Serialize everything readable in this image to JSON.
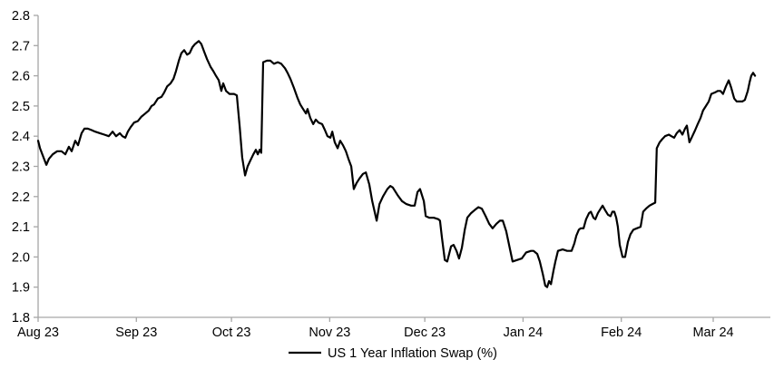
{
  "chart_data": {
    "type": "line",
    "title": "",
    "legend": {
      "label": "US 1 Year Inflation Swap (%)",
      "position": "bottom-center"
    },
    "background": "#ffffff",
    "grid": "off",
    "axis_color": "#a6a6a6",
    "line_color": "#000000",
    "y_axis": {
      "min": 1.8,
      "max": 2.8,
      "step": 0.1,
      "tick_labels": [
        "1.8",
        "1.9",
        "2.0",
        "2.1",
        "2.2",
        "2.3",
        "2.4",
        "2.5",
        "2.6",
        "2.7",
        "2.8"
      ]
    },
    "x_axis": {
      "unit": "days since 2023-08-01",
      "range_days": [
        0,
        230
      ],
      "ticks": [
        {
          "label": "Aug 23",
          "day": 0
        },
        {
          "label": "Sep 23",
          "day": 31
        },
        {
          "label": "Oct 23",
          "day": 61
        },
        {
          "label": "Nov 23",
          "day": 92
        },
        {
          "label": "Dec 23",
          "day": 122
        },
        {
          "label": "Jan 24",
          "day": 153
        },
        {
          "label": "Feb 24",
          "day": 184
        },
        {
          "label": "Mar 24",
          "day": 213
        }
      ]
    },
    "series": [
      {
        "name": "US 1 Year Inflation Swap (%)",
        "color": "#000000",
        "points": [
          [
            0,
            2.385
          ],
          [
            0.6,
            2.36
          ],
          [
            1.7,
            2.33
          ],
          [
            2.6,
            2.305
          ],
          [
            3.4,
            2.325
          ],
          [
            4.6,
            2.34
          ],
          [
            6.0,
            2.35
          ],
          [
            7.4,
            2.35
          ],
          [
            8.6,
            2.34
          ],
          [
            9.7,
            2.365
          ],
          [
            10.6,
            2.35
          ],
          [
            11.7,
            2.385
          ],
          [
            12.6,
            2.37
          ],
          [
            13.7,
            2.41
          ],
          [
            14.6,
            2.425
          ],
          [
            15.7,
            2.425
          ],
          [
            16.9,
            2.42
          ],
          [
            18.0,
            2.415
          ],
          [
            19.5,
            2.41
          ],
          [
            20.9,
            2.405
          ],
          [
            22.3,
            2.4
          ],
          [
            23.5,
            2.415
          ],
          [
            24.6,
            2.4
          ],
          [
            25.8,
            2.41
          ],
          [
            26.6,
            2.4
          ],
          [
            27.5,
            2.395
          ],
          [
            28.3,
            2.415
          ],
          [
            29.2,
            2.43
          ],
          [
            30.3,
            2.445
          ],
          [
            31.5,
            2.45
          ],
          [
            32.6,
            2.465
          ],
          [
            33.8,
            2.475
          ],
          [
            34.9,
            2.485
          ],
          [
            35.8,
            2.5
          ],
          [
            36.6,
            2.505
          ],
          [
            37.8,
            2.525
          ],
          [
            38.9,
            2.53
          ],
          [
            39.8,
            2.545
          ],
          [
            40.7,
            2.565
          ],
          [
            41.8,
            2.575
          ],
          [
            42.7,
            2.59
          ],
          [
            43.5,
            2.615
          ],
          [
            44.4,
            2.65
          ],
          [
            45.2,
            2.675
          ],
          [
            46.1,
            2.685
          ],
          [
            47.0,
            2.67
          ],
          [
            47.8,
            2.675
          ],
          [
            48.7,
            2.695
          ],
          [
            49.5,
            2.705
          ],
          [
            50.7,
            2.715
          ],
          [
            51.5,
            2.705
          ],
          [
            52.4,
            2.68
          ],
          [
            53.3,
            2.655
          ],
          [
            54.4,
            2.63
          ],
          [
            55.3,
            2.615
          ],
          [
            56.1,
            2.6
          ],
          [
            57.0,
            2.585
          ],
          [
            57.8,
            2.55
          ],
          [
            58.4,
            2.575
          ],
          [
            59.3,
            2.55
          ],
          [
            60.4,
            2.54
          ],
          [
            61.8,
            2.54
          ],
          [
            62.7,
            2.535
          ],
          [
            63.6,
            2.43
          ],
          [
            64.4,
            2.33
          ],
          [
            65.3,
            2.27
          ],
          [
            66.1,
            2.3
          ],
          [
            67.0,
            2.32
          ],
          [
            67.9,
            2.34
          ],
          [
            68.7,
            2.355
          ],
          [
            69.3,
            2.34
          ],
          [
            69.9,
            2.355
          ],
          [
            70.4,
            2.345
          ],
          [
            71.0,
            2.645
          ],
          [
            72.2,
            2.65
          ],
          [
            73.3,
            2.65
          ],
          [
            74.4,
            2.64
          ],
          [
            75.6,
            2.645
          ],
          [
            76.7,
            2.64
          ],
          [
            77.9,
            2.625
          ],
          [
            78.7,
            2.61
          ],
          [
            79.6,
            2.59
          ],
          [
            80.7,
            2.56
          ],
          [
            81.9,
            2.525
          ],
          [
            82.7,
            2.505
          ],
          [
            83.6,
            2.49
          ],
          [
            84.5,
            2.475
          ],
          [
            85.0,
            2.49
          ],
          [
            85.9,
            2.46
          ],
          [
            86.8,
            2.44
          ],
          [
            87.6,
            2.455
          ],
          [
            88.5,
            2.445
          ],
          [
            89.6,
            2.44
          ],
          [
            90.5,
            2.42
          ],
          [
            91.3,
            2.4
          ],
          [
            92.2,
            2.395
          ],
          [
            92.8,
            2.415
          ],
          [
            93.6,
            2.38
          ],
          [
            94.5,
            2.36
          ],
          [
            95.3,
            2.385
          ],
          [
            96.2,
            2.37
          ],
          [
            97.1,
            2.35
          ],
          [
            97.9,
            2.325
          ],
          [
            98.8,
            2.3
          ],
          [
            99.6,
            2.225
          ],
          [
            100.5,
            2.245
          ],
          [
            101.4,
            2.26
          ],
          [
            102.5,
            2.275
          ],
          [
            103.4,
            2.28
          ],
          [
            104.5,
            2.24
          ],
          [
            105.4,
            2.185
          ],
          [
            106.8,
            2.12
          ],
          [
            107.7,
            2.175
          ],
          [
            108.8,
            2.2
          ],
          [
            110.2,
            2.225
          ],
          [
            111.1,
            2.235
          ],
          [
            111.9,
            2.23
          ],
          [
            113.4,
            2.205
          ],
          [
            114.8,
            2.185
          ],
          [
            116.2,
            2.175
          ],
          [
            117.7,
            2.17
          ],
          [
            118.8,
            2.17
          ],
          [
            119.7,
            2.215
          ],
          [
            120.5,
            2.225
          ],
          [
            121.7,
            2.185
          ],
          [
            122.3,
            2.135
          ],
          [
            123.4,
            2.13
          ],
          [
            124.8,
            2.13
          ],
          [
            126.3,
            2.125
          ],
          [
            126.8,
            2.12
          ],
          [
            127.4,
            2.065
          ],
          [
            128.3,
            1.99
          ],
          [
            129.1,
            1.985
          ],
          [
            130.3,
            2.035
          ],
          [
            131.1,
            2.04
          ],
          [
            132.0,
            2.02
          ],
          [
            132.8,
            1.995
          ],
          [
            133.7,
            2.03
          ],
          [
            134.6,
            2.09
          ],
          [
            135.4,
            2.13
          ],
          [
            136.6,
            2.145
          ],
          [
            137.7,
            2.155
          ],
          [
            138.9,
            2.165
          ],
          [
            140.0,
            2.16
          ],
          [
            141.2,
            2.135
          ],
          [
            142.3,
            2.11
          ],
          [
            143.4,
            2.095
          ],
          [
            144.6,
            2.11
          ],
          [
            145.7,
            2.12
          ],
          [
            146.6,
            2.12
          ],
          [
            147.7,
            2.085
          ],
          [
            148.9,
            2.025
          ],
          [
            149.7,
            1.985
          ],
          [
            151.2,
            1.99
          ],
          [
            152.6,
            1.995
          ],
          [
            154.0,
            2.015
          ],
          [
            155.5,
            2.02
          ],
          [
            156.3,
            2.02
          ],
          [
            157.5,
            2.01
          ],
          [
            158.3,
            1.985
          ],
          [
            159.2,
            1.945
          ],
          [
            160.0,
            1.905
          ],
          [
            160.6,
            1.9
          ],
          [
            161.2,
            1.92
          ],
          [
            161.8,
            1.91
          ],
          [
            162.6,
            1.955
          ],
          [
            163.2,
            1.985
          ],
          [
            164.0,
            2.02
          ],
          [
            165.5,
            2.025
          ],
          [
            166.9,
            2.02
          ],
          [
            168.3,
            2.02
          ],
          [
            169.2,
            2.045
          ],
          [
            169.8,
            2.07
          ],
          [
            170.6,
            2.09
          ],
          [
            171.2,
            2.095
          ],
          [
            172.1,
            2.095
          ],
          [
            172.9,
            2.125
          ],
          [
            173.8,
            2.145
          ],
          [
            174.4,
            2.15
          ],
          [
            175.2,
            2.13
          ],
          [
            175.8,
            2.125
          ],
          [
            176.6,
            2.145
          ],
          [
            177.5,
            2.16
          ],
          [
            178.1,
            2.17
          ],
          [
            178.9,
            2.155
          ],
          [
            179.8,
            2.14
          ],
          [
            180.6,
            2.135
          ],
          [
            181.2,
            2.15
          ],
          [
            181.8,
            2.15
          ],
          [
            182.4,
            2.13
          ],
          [
            182.9,
            2.1
          ],
          [
            183.5,
            2.04
          ],
          [
            184.4,
            2.0
          ],
          [
            185.2,
            2.0
          ],
          [
            186.1,
            2.05
          ],
          [
            186.9,
            2.075
          ],
          [
            187.8,
            2.09
          ],
          [
            188.9,
            2.095
          ],
          [
            190.1,
            2.1
          ],
          [
            190.9,
            2.15
          ],
          [
            191.8,
            2.16
          ],
          [
            192.9,
            2.17
          ],
          [
            193.8,
            2.175
          ],
          [
            194.7,
            2.18
          ],
          [
            195.2,
            2.36
          ],
          [
            196.1,
            2.38
          ],
          [
            196.9,
            2.39
          ],
          [
            197.8,
            2.4
          ],
          [
            199.0,
            2.405
          ],
          [
            199.8,
            2.4
          ],
          [
            200.7,
            2.395
          ],
          [
            201.5,
            2.41
          ],
          [
            202.4,
            2.42
          ],
          [
            203.3,
            2.405
          ],
          [
            204.1,
            2.425
          ],
          [
            204.7,
            2.435
          ],
          [
            205.5,
            2.38
          ],
          [
            206.4,
            2.4
          ],
          [
            207.3,
            2.42
          ],
          [
            208.1,
            2.44
          ],
          [
            209.0,
            2.46
          ],
          [
            209.8,
            2.485
          ],
          [
            210.7,
            2.5
          ],
          [
            211.6,
            2.515
          ],
          [
            212.4,
            2.54
          ],
          [
            213.6,
            2.545
          ],
          [
            214.4,
            2.55
          ],
          [
            215.3,
            2.55
          ],
          [
            216.1,
            2.54
          ],
          [
            217.0,
            2.565
          ],
          [
            217.9,
            2.585
          ],
          [
            218.7,
            2.56
          ],
          [
            219.6,
            2.525
          ],
          [
            220.4,
            2.515
          ],
          [
            221.3,
            2.515
          ],
          [
            222.2,
            2.515
          ],
          [
            223.0,
            2.52
          ],
          [
            223.9,
            2.55
          ],
          [
            224.5,
            2.58
          ],
          [
            225.0,
            2.6
          ],
          [
            225.6,
            2.61
          ],
          [
            226.2,
            2.6
          ]
        ]
      }
    ]
  }
}
